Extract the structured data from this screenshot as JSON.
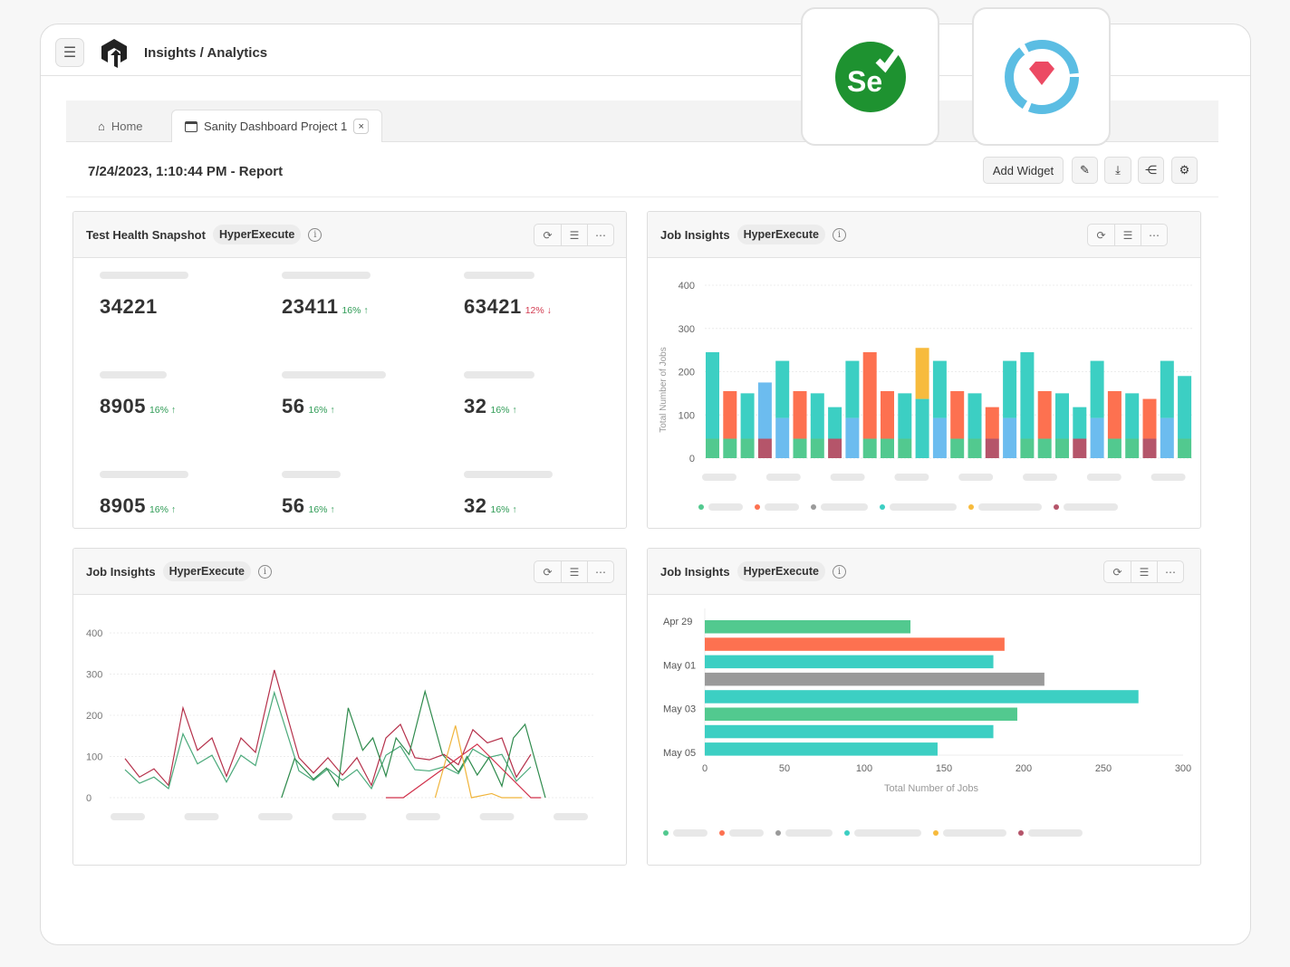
{
  "header": {
    "title": "Insights / Analytics",
    "menu_icon": "hamburger-icon",
    "logo_icon": "lambdatest-logo"
  },
  "tabs": [
    {
      "label": "Home",
      "icon": "home-icon"
    },
    {
      "label": "Sanity Dashboard Project 1",
      "icon": "dashboard-icon",
      "close": "×"
    }
  ],
  "report": {
    "title": "7/24/2023, 1:10:44 PM - Report"
  },
  "toolbar": {
    "add_widget": "Add Widget",
    "icons": [
      "pencil-icon",
      "download-icon",
      "share-icon",
      "gear-icon"
    ]
  },
  "logos": [
    "selenium-logo",
    "ruby-logo"
  ],
  "colors": {
    "green": "#52c98f",
    "coral": "#fd7150",
    "gray": "#9a9a9a",
    "teal": "#3ccfc3",
    "yellow": "#f7bb3d",
    "maroon": "#b5556a",
    "blue": "#6cbcef",
    "up": "#2e9b55",
    "down": "#d23b50"
  },
  "widgets": {
    "snapshot": {
      "title": "Test Health Snapshot",
      "tag": "HyperExecute",
      "stats": [
        {
          "value": "34221"
        },
        {
          "value": "23411",
          "delta": "16%",
          "dir": "↑"
        },
        {
          "value": "63421",
          "delta": "12%",
          "dir": "↓"
        },
        {
          "value": "8905",
          "delta": "16%",
          "dir": "↑"
        },
        {
          "value": "56",
          "delta": "16%",
          "dir": "↑"
        },
        {
          "value": "32",
          "delta": "16%",
          "dir": "↑"
        },
        {
          "value": "8905",
          "delta": "16%",
          "dir": "↑"
        },
        {
          "value": "56",
          "delta": "16%",
          "dir": "↑"
        },
        {
          "value": "32",
          "delta": "16%",
          "dir": "↑"
        }
      ]
    },
    "stacked": {
      "title": "Job Insights",
      "tag": "HyperExecute"
    },
    "line": {
      "title": "Job Insights",
      "tag": "HyperExecute"
    },
    "hbar": {
      "title": "Job Insights",
      "tag": "HyperExecute"
    }
  },
  "chart_data": [
    {
      "type": "bar",
      "stacked": true,
      "ylabel": "Total Number of Jobs",
      "ylim": [
        0,
        400
      ],
      "yticks": [
        0,
        100,
        200,
        300,
        400
      ],
      "grid": true,
      "legend": "bottom",
      "legend_colors": [
        "green",
        "coral",
        "gray",
        "teal",
        "yellow",
        "maroon"
      ],
      "series": [
        {
          "color": "green",
          "values": [
            45,
            45,
            45,
            0,
            0,
            45,
            45,
            0,
            0,
            45,
            45,
            45,
            0,
            0,
            45,
            45,
            0,
            0,
            45,
            45,
            45,
            0,
            0,
            45,
            45,
            0,
            0,
            45
          ]
        },
        {
          "color": "maroon",
          "values": [
            0,
            0,
            0,
            45,
            0,
            0,
            0,
            45,
            0,
            0,
            0,
            0,
            0,
            0,
            0,
            0,
            45,
            0,
            0,
            0,
            0,
            45,
            0,
            0,
            0,
            45,
            0,
            0
          ]
        },
        {
          "color": "blue",
          "values": [
            0,
            0,
            0,
            130,
            93,
            0,
            0,
            0,
            93,
            0,
            0,
            0,
            0,
            93,
            0,
            0,
            0,
            93,
            0,
            0,
            0,
            0,
            93,
            0,
            0,
            0,
            93,
            0
          ]
        },
        {
          "color": "teal",
          "values": [
            200,
            0,
            105,
            0,
            132,
            0,
            105,
            73,
            132,
            0,
            0,
            105,
            137,
            132,
            0,
            105,
            0,
            132,
            200,
            0,
            105,
            73,
            132,
            0,
            105,
            0,
            132,
            145
          ]
        },
        {
          "color": "coral",
          "values": [
            0,
            110,
            0,
            0,
            0,
            110,
            0,
            0,
            0,
            200,
            110,
            0,
            0,
            0,
            110,
            0,
            73,
            0,
            0,
            110,
            0,
            0,
            0,
            110,
            0,
            92,
            0,
            0
          ]
        },
        {
          "color": "yellow",
          "values": [
            0,
            0,
            0,
            0,
            0,
            0,
            0,
            0,
            0,
            0,
            0,
            0,
            118,
            0,
            0,
            0,
            0,
            0,
            0,
            0,
            0,
            0,
            0,
            0,
            0,
            0,
            0,
            0
          ]
        }
      ]
    },
    {
      "type": "line",
      "ylim": [
        0,
        400
      ],
      "yticks": [
        0,
        100,
        200,
        300,
        400
      ],
      "grid": true,
      "series": [
        {
          "color": "#b5304a",
          "x": [
            0,
            1,
            2,
            3,
            4,
            5,
            6,
            7,
            8,
            9,
            10.3,
            12,
            13,
            14,
            15,
            16,
            17,
            18,
            19,
            20,
            21,
            22,
            23,
            24,
            25,
            26,
            27,
            28
          ],
          "y": [
            95,
            50,
            70,
            30,
            218,
            115,
            145,
            52,
            145,
            110,
            310,
            97,
            60,
            97,
            55,
            97,
            30,
            145,
            178,
            97,
            92,
            105,
            80,
            165,
            133,
            145,
            50,
            105
          ]
        },
        {
          "color": "#4aa97a",
          "x": [
            0,
            1,
            2,
            3,
            4,
            5,
            6,
            7,
            8,
            9,
            10.3,
            12,
            13,
            14,
            15,
            16,
            17,
            18,
            19,
            20,
            21,
            22,
            23,
            24,
            25,
            26,
            27,
            28
          ],
          "y": [
            68,
            35,
            50,
            22,
            155,
            82,
            103,
            38,
            103,
            78,
            255,
            65,
            42,
            70,
            42,
            68,
            22,
            103,
            125,
            68,
            65,
            75,
            58,
            118,
            97,
            105,
            40,
            75
          ]
        },
        {
          "color": "#2e8a4c",
          "x": [
            10.8,
            11.7,
            13,
            13.9,
            14.7,
            15.4,
            16.4,
            17.1,
            18,
            18.7,
            19.6,
            20.7,
            21.9,
            23,
            23.6,
            24.3,
            25.1,
            26,
            26.8,
            27.6,
            29
          ],
          "y": [
            0,
            95,
            45,
            72,
            28,
            218,
            115,
            145,
            52,
            145,
            105,
            258,
            105,
            62,
            100,
            55,
            97,
            28,
            145,
            178,
            0
          ]
        },
        {
          "color": "#d0304a",
          "x": [
            18,
            19.2,
            24.3,
            28,
            28.7
          ],
          "y": [
            0,
            0,
            130,
            0,
            0
          ]
        },
        {
          "color": "#f0b43a",
          "x": [
            21.4,
            22.8,
            23.9,
            25.3,
            26,
            27.4
          ],
          "y": [
            0,
            175,
            0,
            10,
            0,
            0
          ]
        }
      ]
    },
    {
      "type": "bar",
      "orientation": "horizontal",
      "xlabel": "Total Number of Jobs",
      "xlim": [
        0,
        300
      ],
      "xticks": [
        0,
        50,
        100,
        150,
        200,
        250,
        300
      ],
      "ytick_labels": [
        "Apr 29",
        "May 01",
        "May 03",
        "May 05"
      ],
      "values": [
        129,
        188,
        181,
        213,
        272,
        196,
        181,
        146
      ],
      "colors": [
        "green",
        "coral",
        "teal",
        "gray",
        "teal",
        "green",
        "teal",
        "teal"
      ],
      "legend": "bottom",
      "legend_colors": [
        "green",
        "coral",
        "gray",
        "teal",
        "yellow",
        "maroon"
      ]
    }
  ]
}
